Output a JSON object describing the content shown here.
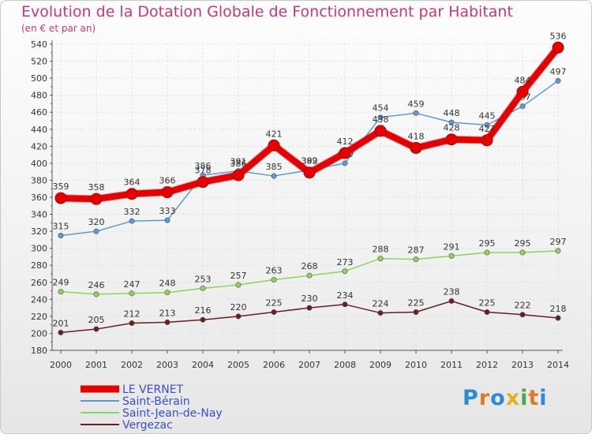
{
  "header": {
    "title": "Evolution de la Dotation Globale de Fonctionnement par Habitant",
    "subtitle": "(en € et par an)"
  },
  "logo": {
    "text": "Proxiti",
    "letters": [
      "P",
      "r",
      "o",
      "x",
      "i",
      "t",
      "i"
    ],
    "colors": [
      "#2a8bd8",
      "#e07a1f",
      "#2a8bd8",
      "#e0b21f",
      "#4aa84a",
      "#e07a1f",
      "#2a8bd8"
    ]
  },
  "chart_data": {
    "type": "line",
    "x": [
      "2000",
      "2001",
      "2002",
      "2003",
      "2004",
      "2005",
      "2006",
      "2007",
      "2008",
      "2009",
      "2010",
      "2011",
      "2012",
      "2013",
      "2014"
    ],
    "ylim": [
      180,
      540
    ],
    "yticks": [
      180,
      200,
      220,
      240,
      260,
      280,
      300,
      320,
      340,
      360,
      380,
      400,
      420,
      440,
      460,
      480,
      500,
      520,
      540
    ],
    "grid": true,
    "legend_position": "bottom-left",
    "series": [
      {
        "name": "Vergezac",
        "color": "#6b1e1e",
        "values": [
          201,
          205,
          212,
          213,
          216,
          220,
          225,
          230,
          234,
          224,
          225,
          238,
          225,
          222,
          218
        ]
      },
      {
        "name": "Saint-Jean-de-Nay",
        "color": "#8fd45a",
        "values": [
          249,
          246,
          247,
          248,
          253,
          257,
          263,
          268,
          273,
          288,
          287,
          291,
          295,
          295,
          297
        ]
      },
      {
        "name": "Saint-Bérain",
        "color": "#5b9bd5",
        "values": [
          315,
          320,
          332,
          333,
          386,
          391,
          385,
          392,
          400,
          454,
          459,
          448,
          445,
          467,
          497
        ]
      },
      {
        "name": "LE VERNET",
        "color": "#e60000",
        "values": [
          359,
          358,
          364,
          366,
          378,
          386,
          421,
          389,
          412,
          438,
          418,
          428,
          427,
          484,
          536
        ]
      }
    ],
    "legend_order": [
      "LE VERNET",
      "Saint-Bérain",
      "Saint-Jean-de-Nay",
      "Vergezac"
    ]
  }
}
